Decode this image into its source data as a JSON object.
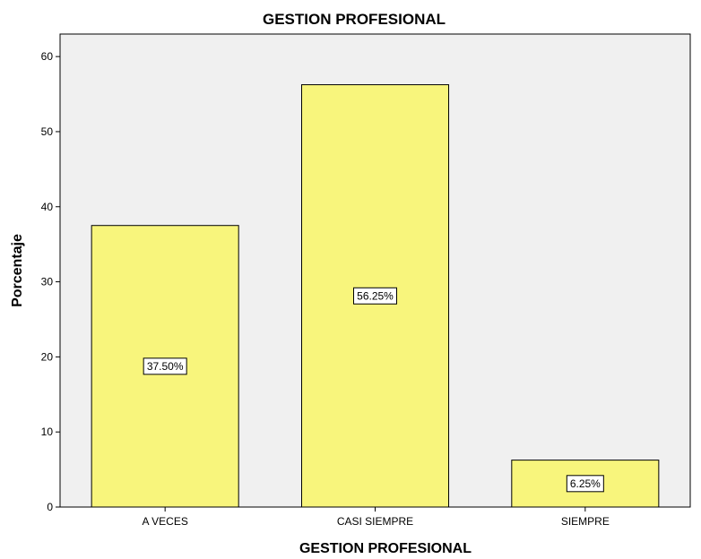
{
  "chart_data": {
    "type": "bar",
    "title": "GESTION PROFESIONAL",
    "xlabel": "GESTION PROFESIONAL",
    "ylabel": "Porcentaje",
    "categories": [
      "A VECES",
      "CASI SIEMPRE",
      "SIEMPRE"
    ],
    "values": [
      37.5,
      56.25,
      6.25
    ],
    "data_labels": [
      "37.50%",
      "56.25%",
      "6.25%"
    ],
    "ylim": [
      0,
      63
    ],
    "yticks": [
      0,
      10,
      20,
      30,
      40,
      50,
      60
    ],
    "grid": false,
    "legend": "none",
    "colors": {
      "bar_fill": "#f8f57c",
      "bar_stroke": "#000000",
      "plot_background": "#f0f0f0",
      "label_box": "#ffffff"
    }
  }
}
